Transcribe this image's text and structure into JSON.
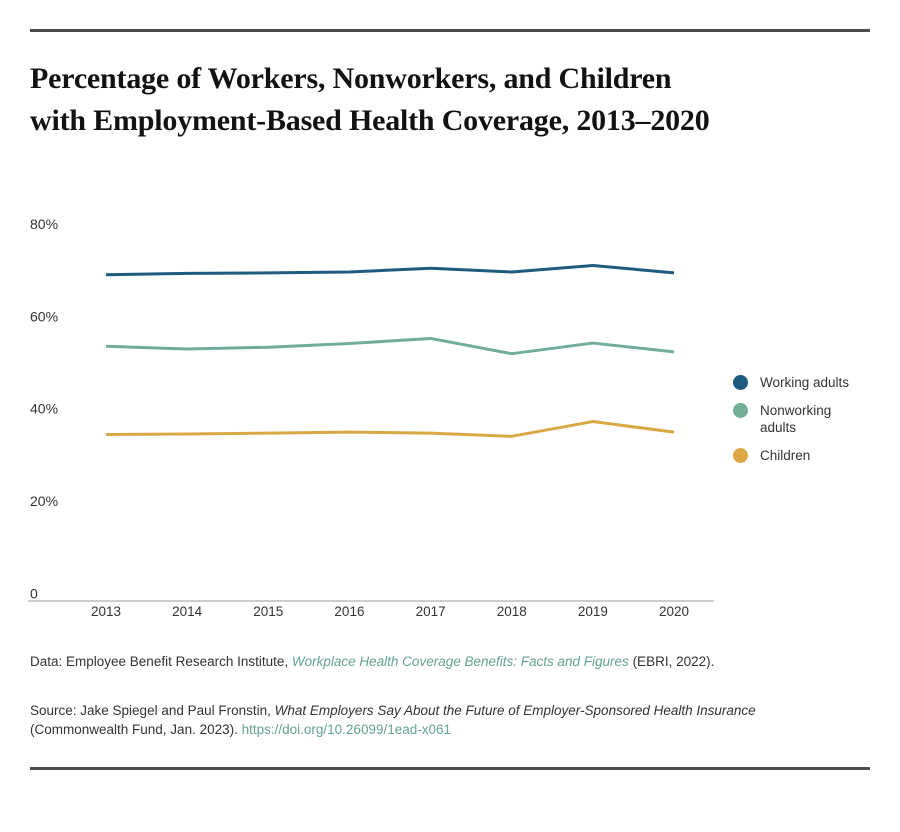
{
  "title": "Percentage of Workers, Nonworkers, and Children with Employment-Based Health Coverage, 2013–2020",
  "chart_data": {
    "type": "line",
    "x": [
      2013,
      2014,
      2015,
      2016,
      2017,
      2018,
      2019,
      2020
    ],
    "series": [
      {
        "name": "Working adults",
        "color": "#1d5b7f",
        "values": [
          69.0,
          69.3,
          69.4,
          69.6,
          70.4,
          69.6,
          71.0,
          69.4
        ]
      },
      {
        "name": "Nonworking adults",
        "color": "#72ad96",
        "values": [
          53.5,
          52.9,
          53.3,
          54.1,
          55.2,
          51.9,
          54.2,
          52.3
        ]
      },
      {
        "name": "Children",
        "color": "#d9a845",
        "values": [
          34.4,
          34.5,
          34.7,
          34.9,
          34.7,
          34.0,
          37.2,
          34.9
        ]
      }
    ],
    "yticks": [
      {
        "value": 80,
        "label": "80%"
      },
      {
        "value": 60,
        "label": "60%"
      },
      {
        "value": 40,
        "label": "40%"
      },
      {
        "value": 20,
        "label": "20%"
      },
      {
        "value": 0,
        "label": "0"
      }
    ],
    "ylim": [
      0,
      86
    ],
    "xlabel": "",
    "ylabel": "",
    "grid": false,
    "legend_position": "right",
    "title": "Percentage of Workers, Nonworkers, and Children with Employment-Based Health Coverage, 2013–2020"
  },
  "footnotes": {
    "data_prefix": "Data: Employee Benefit Research Institute, ",
    "data_link": "Workplace Health Coverage Benefits: Facts and Figures",
    "data_suffix": " (EBRI, 2022).",
    "source_prefix": "Source: Jake Spiegel and Paul Fronstin, ",
    "source_italic": "What Employers Say About the Future of Employer-Sponsored Health Insurance",
    "source_suffix": " (Commonwealth Fund, Jan. 2023). ",
    "source_link": "https://doi.org/10.26099/1ead-x061"
  },
  "colors": {
    "rule": "#4d4d4f",
    "axis_line": "#9b9b9b",
    "tick_text": "#333333",
    "link": "#64a391"
  }
}
